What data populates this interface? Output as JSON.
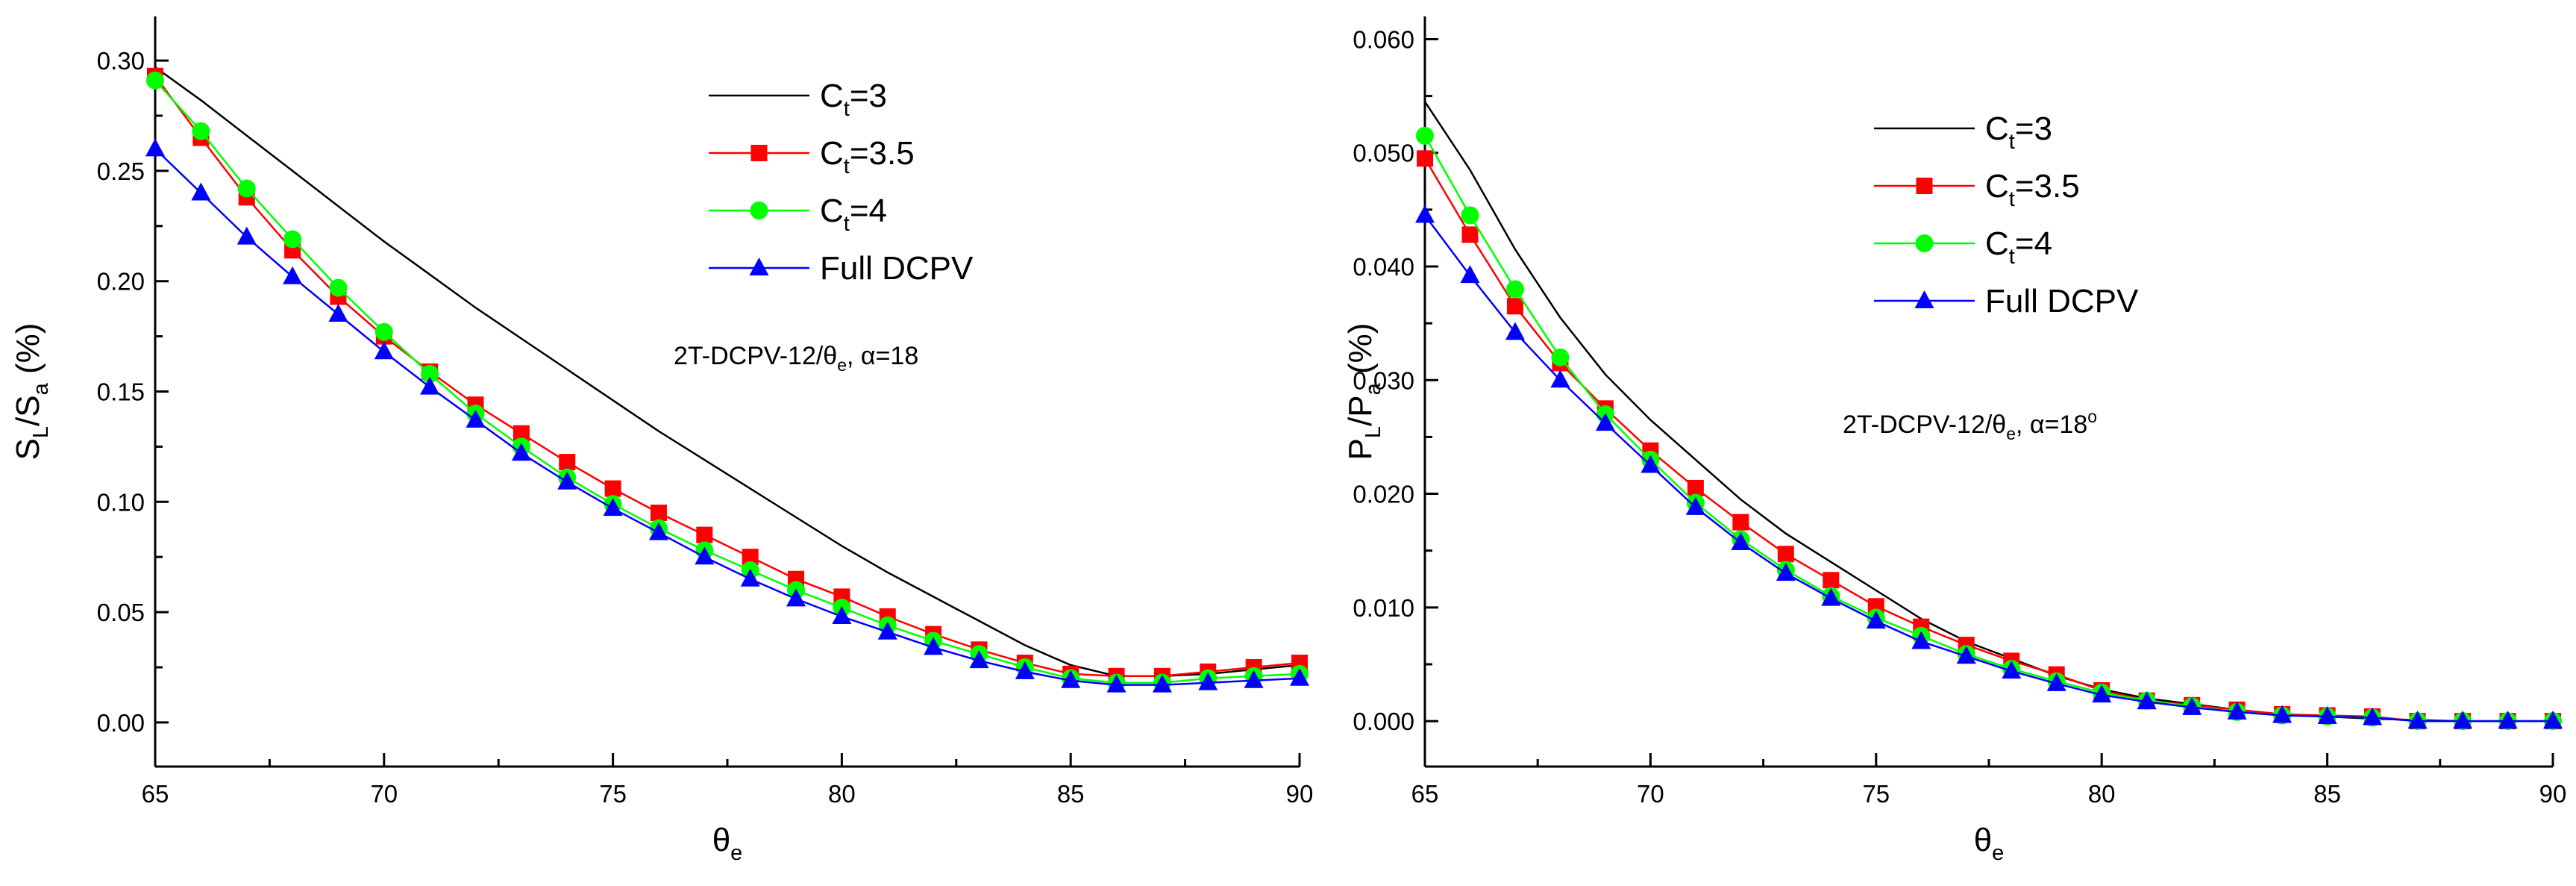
{
  "chart_data": [
    {
      "type": "line",
      "title": "",
      "xlabel": "θ",
      "xlabel_sub": "e",
      "ylabel_parts": [
        "S",
        "L",
        "/S",
        "a",
        " (%)"
      ],
      "xlim": [
        65,
        90
      ],
      "ylim": [
        -0.02,
        0.32
      ],
      "xticks": [
        65,
        70,
        75,
        80,
        85,
        90
      ],
      "yticks": [
        0.0,
        0.05,
        0.1,
        0.15,
        0.2,
        0.25,
        0.3
      ],
      "ytick_labels": [
        "0.00",
        "0.05",
        "0.10",
        "0.15",
        "0.20",
        "0.25",
        "0.30"
      ],
      "legend_position": "top-right",
      "annotation": {
        "main": "2T-DCPV-12/θ",
        "sub": "e",
        "rest": ", α=18",
        "sup": ""
      },
      "x": [
        65,
        66,
        67,
        68,
        69,
        70,
        71,
        72,
        73,
        74,
        75,
        76,
        77,
        78,
        79,
        80,
        81,
        82,
        83,
        84,
        85,
        86,
        87,
        88,
        89,
        90
      ],
      "series": [
        {
          "name_main": "C",
          "name_sub": "t",
          "name_rest": "=3",
          "color": "#000000",
          "marker": "none",
          "values": [
            0.297,
            0.282,
            0.266,
            0.25,
            0.234,
            0.218,
            0.203,
            0.188,
            0.174,
            0.16,
            0.146,
            0.132,
            0.119,
            0.106,
            0.093,
            0.08,
            0.068,
            0.057,
            0.046,
            0.035,
            0.026,
            0.021,
            0.021,
            0.022,
            0.024,
            0.026
          ]
        },
        {
          "name_main": "C",
          "name_sub": "t",
          "name_rest": "=3.5",
          "color": "#ff0000",
          "marker": "square",
          "values": [
            0.293,
            0.265,
            0.238,
            0.214,
            0.193,
            0.175,
            0.159,
            0.144,
            0.131,
            0.118,
            0.106,
            0.095,
            0.085,
            0.075,
            0.065,
            0.057,
            0.048,
            0.04,
            0.033,
            0.027,
            0.022,
            0.021,
            0.021,
            0.023,
            0.025,
            0.027
          ]
        },
        {
          "name_main": "C",
          "name_sub": "t",
          "name_rest": "=4",
          "color": "#00ff00",
          "marker": "circle",
          "values": [
            0.291,
            0.268,
            0.242,
            0.219,
            0.197,
            0.177,
            0.158,
            0.14,
            0.125,
            0.111,
            0.099,
            0.088,
            0.078,
            0.069,
            0.06,
            0.052,
            0.044,
            0.037,
            0.031,
            0.025,
            0.02,
            0.018,
            0.018,
            0.02,
            0.021,
            0.022
          ]
        },
        {
          "name_main": "Full DCPV",
          "name_sub": "",
          "name_rest": "",
          "color": "#0000ff",
          "marker": "triangle",
          "values": [
            0.26,
            0.24,
            0.22,
            0.202,
            0.185,
            0.168,
            0.152,
            0.137,
            0.122,
            0.109,
            0.097,
            0.086,
            0.075,
            0.065,
            0.056,
            0.048,
            0.041,
            0.034,
            0.028,
            0.023,
            0.019,
            0.017,
            0.017,
            0.018,
            0.019,
            0.02
          ]
        }
      ]
    },
    {
      "type": "line",
      "title": "",
      "xlabel": "θ",
      "xlabel_sub": "e",
      "ylabel_parts": [
        "P",
        "L",
        "/P",
        "a",
        " (%)"
      ],
      "xlim": [
        65,
        90
      ],
      "ylim": [
        -0.004,
        0.062
      ],
      "xticks": [
        65,
        70,
        75,
        80,
        85,
        90
      ],
      "yticks": [
        0.0,
        0.01,
        0.02,
        0.03,
        0.04,
        0.05,
        0.06
      ],
      "ytick_labels": [
        "0.000",
        "0.010",
        "0.020",
        "0.030",
        "0.040",
        "0.050",
        "0.060"
      ],
      "legend_position": "top-right",
      "annotation": {
        "main": "2T-DCPV-12/θ",
        "sub": "e",
        "rest": ", α=18",
        "sup": "o"
      },
      "x": [
        65,
        66,
        67,
        68,
        69,
        70,
        71,
        72,
        73,
        74,
        75,
        76,
        77,
        78,
        79,
        80,
        81,
        82,
        83,
        84,
        85,
        86,
        87,
        88,
        89,
        90
      ],
      "series": [
        {
          "name_main": "C",
          "name_sub": "t",
          "name_rest": "=3",
          "color": "#000000",
          "marker": "none",
          "values": [
            0.0545,
            0.0485,
            0.0415,
            0.0355,
            0.0305,
            0.0265,
            0.023,
            0.0195,
            0.0165,
            0.014,
            0.0115,
            0.009,
            0.007,
            0.0055,
            0.004,
            0.0028,
            0.002,
            0.0015,
            0.001,
            0.0006,
            0.0004,
            0.0002,
            0.0001,
            0.0,
            0.0,
            0.0
          ]
        },
        {
          "name_main": "C",
          "name_sub": "t",
          "name_rest": "=3.5",
          "color": "#ff0000",
          "marker": "square",
          "values": [
            0.0495,
            0.0428,
            0.0365,
            0.0315,
            0.0275,
            0.0238,
            0.0205,
            0.0175,
            0.0147,
            0.0124,
            0.0101,
            0.0083,
            0.0067,
            0.0053,
            0.0041,
            0.0027,
            0.0018,
            0.0014,
            0.001,
            0.0006,
            0.0005,
            0.0004,
            0.0,
            0.0,
            0.0,
            0.0
          ]
        },
        {
          "name_main": "C",
          "name_sub": "t",
          "name_rest": "=4",
          "color": "#00ff00",
          "marker": "circle",
          "values": [
            0.0515,
            0.0445,
            0.038,
            0.032,
            0.027,
            0.023,
            0.0192,
            0.016,
            0.0133,
            0.011,
            0.0091,
            0.0075,
            0.0059,
            0.0046,
            0.0035,
            0.0025,
            0.0018,
            0.0013,
            0.0008,
            0.0005,
            0.0004,
            0.0003,
            0.0,
            0.0,
            0.0,
            0.0
          ]
        },
        {
          "name_main": "Full DCPV",
          "name_sub": "",
          "name_rest": "",
          "color": "#0000ff",
          "marker": "triangle",
          "values": [
            0.0445,
            0.0392,
            0.0342,
            0.03,
            0.0262,
            0.0225,
            0.0188,
            0.0157,
            0.013,
            0.0108,
            0.0088,
            0.007,
            0.0057,
            0.0044,
            0.0033,
            0.0023,
            0.0017,
            0.0012,
            0.0008,
            0.0005,
            0.0004,
            0.0003,
            0.0,
            0.0,
            0.0,
            0.0
          ]
        }
      ]
    }
  ]
}
